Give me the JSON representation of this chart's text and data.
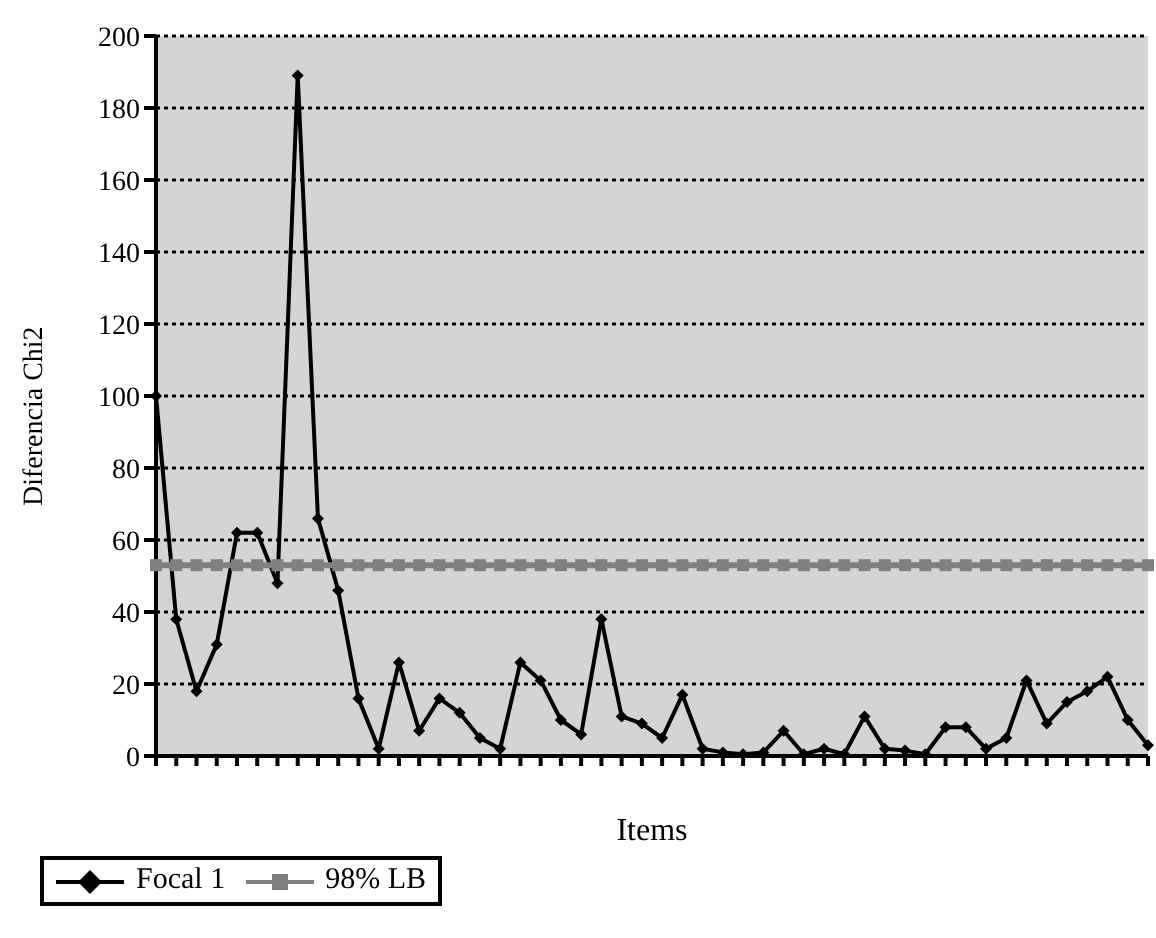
{
  "chart_data": {
    "type": "line",
    "xlabel": "Items",
    "ylabel": "Diferencia Chi2",
    "categories": [
      null,
      null,
      null,
      null,
      null,
      null,
      null,
      null,
      null,
      null,
      null,
      null,
      null,
      null,
      null,
      null,
      null,
      null,
      null,
      null,
      null,
      null,
      null,
      null,
      null,
      null,
      null,
      null,
      null,
      null,
      null,
      null,
      null,
      null,
      null,
      null,
      null,
      null,
      null,
      null,
      null,
      null,
      null,
      null,
      null,
      null,
      null,
      null,
      null,
      null
    ],
    "series": [
      {
        "name": "Focal 1",
        "color": "#000000",
        "marker": "diamond",
        "values": [
          100,
          38,
          18,
          31,
          62,
          62,
          48,
          189,
          66,
          46,
          16,
          2,
          26,
          7,
          16,
          12,
          5,
          2,
          26,
          21,
          10,
          6,
          38,
          11,
          9,
          5,
          17,
          2,
          1,
          0.5,
          1,
          7,
          0.5,
          2,
          0.5,
          11,
          2,
          1.5,
          0.5,
          8,
          8,
          2,
          5,
          21,
          9,
          15,
          18,
          22,
          10,
          3
        ]
      },
      {
        "name": "98% LB",
        "color": "#808080",
        "marker": "square",
        "values": [
          53,
          53,
          53,
          53,
          53,
          53,
          53,
          53,
          53,
          53,
          53,
          53,
          53,
          53,
          53,
          53,
          53,
          53,
          53,
          53,
          53,
          53,
          53,
          53,
          53,
          53,
          53,
          53,
          53,
          53,
          53,
          53,
          53,
          53,
          53,
          53,
          53,
          53,
          53,
          53,
          53,
          53,
          53,
          53,
          53,
          53,
          53,
          53,
          53,
          53
        ]
      }
    ],
    "ylim": [
      0,
      200
    ],
    "yticks": [
      0,
      20,
      40,
      60,
      80,
      100,
      120,
      140,
      160,
      180,
      200
    ],
    "grid": "y",
    "line_style": "solid",
    "legend": "bottom left",
    "tick_labels": "y"
  }
}
